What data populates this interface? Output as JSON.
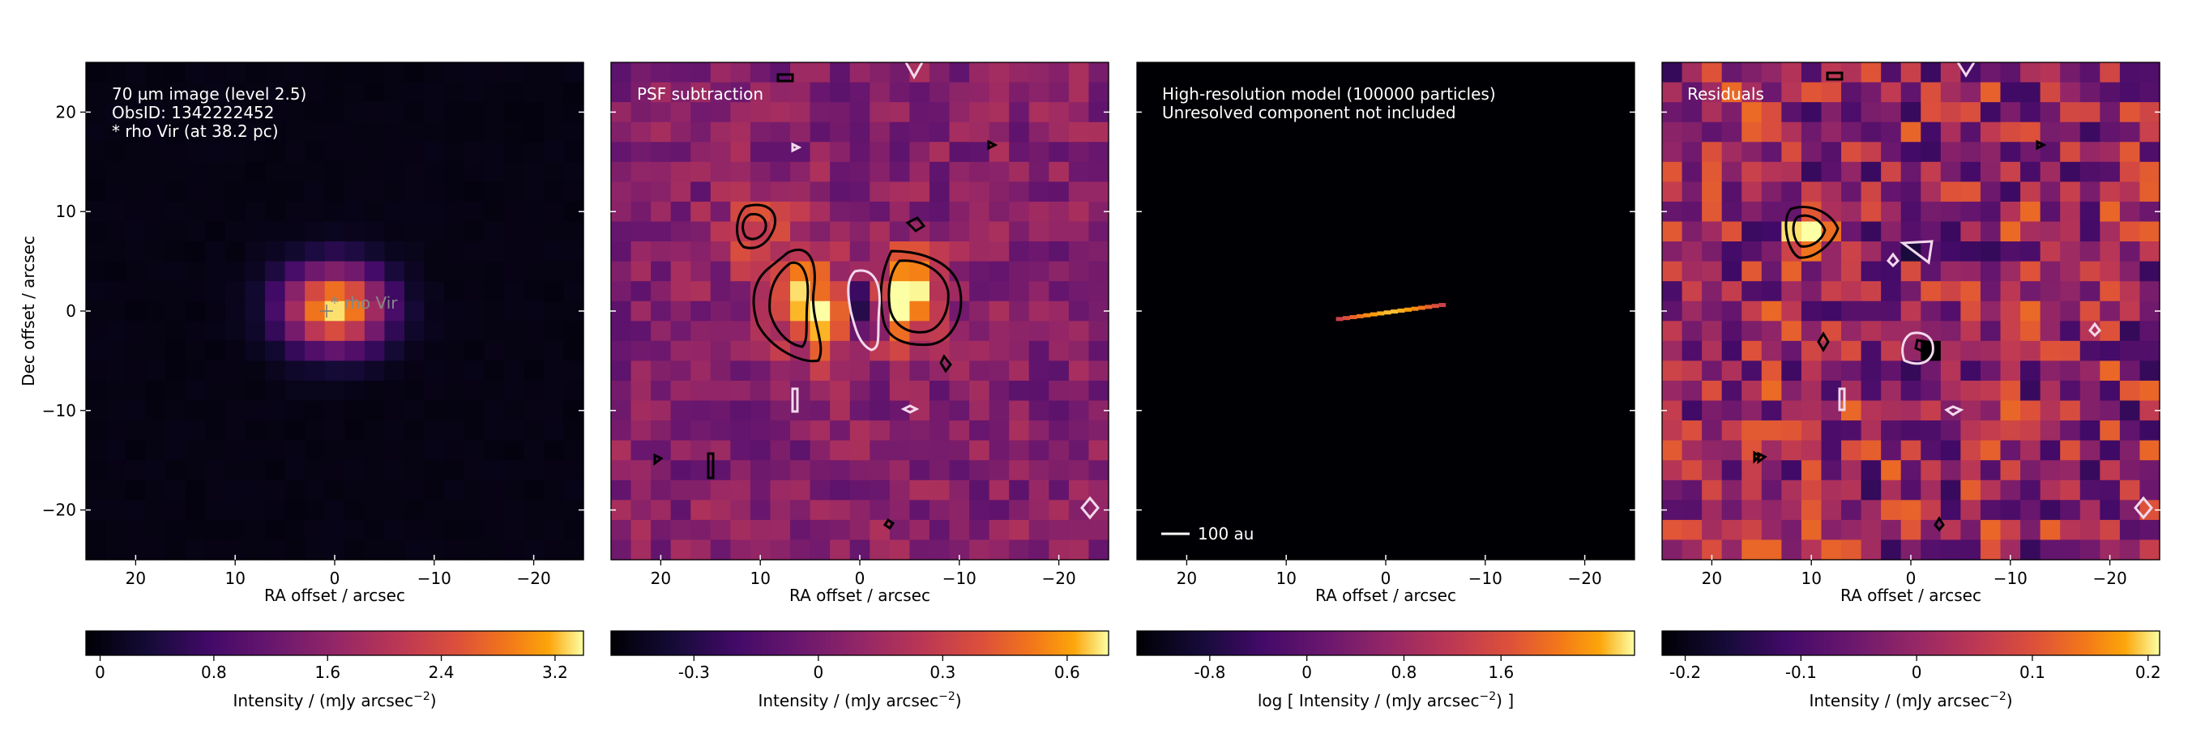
{
  "chart_data": [
    {
      "type": "heatmap",
      "panel_title_lines": [
        "70 µm image (level 2.5)",
        "ObsID: 1342222452",
        "* rho Vir (at 38.2 pc)"
      ],
      "star_label": "* rho Vir",
      "star_position": [
        0,
        0
      ],
      "xlabel": "RA offset / arcsec",
      "ylabel": "Dec offset / arcsec",
      "xlim": [
        25,
        -25
      ],
      "ylim": [
        -25,
        25
      ],
      "xticks": [
        "20",
        "10",
        "0",
        "−10",
        "−20"
      ],
      "xtick_values": [
        20,
        10,
        0,
        -10,
        -20
      ],
      "yticks": [
        "20",
        "10",
        "0",
        "−10",
        "−20"
      ],
      "ytick_values": [
        20,
        10,
        0,
        -10,
        -20
      ],
      "colormap": "inferno",
      "source": {
        "x": 0,
        "y": 0.3,
        "peak": 3.3,
        "sigma_x": 3.6,
        "sigma_y": 2.9
      },
      "colorbar": {
        "label": "Intensity / (mJy arcsec",
        "label_sup": "−2",
        "label_end": ")",
        "range": [
          -0.1,
          3.4
        ],
        "ticks": [
          "0",
          "0.8",
          "1.6",
          "2.4",
          "3.2"
        ],
        "tick_values": [
          0,
          0.8,
          1.6,
          2.4,
          3.2
        ]
      }
    },
    {
      "type": "heatmap",
      "panel_title_lines": [
        "PSF subtraction"
      ],
      "xlabel": "RA offset / arcsec",
      "xlim": [
        25,
        -25
      ],
      "ylim": [
        -25,
        25
      ],
      "xticks": [
        "20",
        "10",
        "0",
        "−10",
        "−20"
      ],
      "xtick_values": [
        20,
        10,
        0,
        -10,
        -20
      ],
      "colormap": "inferno",
      "lobes": [
        {
          "x": 4.5,
          "y": 0.5,
          "peak": 0.65
        },
        {
          "x": -5,
          "y": 1.5,
          "peak": 0.62
        },
        {
          "x": 10,
          "y": 8,
          "peak": 0.35
        }
      ],
      "negative_core": {
        "x": 0,
        "y": 0.5,
        "peak": -0.45
      },
      "colorbar": {
        "label": "Intensity / (mJy arcsec",
        "label_sup": "−2",
        "label_end": ")",
        "range": [
          -0.5,
          0.7
        ],
        "ticks": [
          "-0.3",
          "0",
          "0.3",
          "0.6"
        ],
        "tick_values": [
          -0.3,
          0,
          0.3,
          0.6
        ]
      }
    },
    {
      "type": "heatmap",
      "panel_title_lines": [
        "High-resolution model (100000 particles)",
        "Unresolved component not included"
      ],
      "scalebar_label": "100 au",
      "xlabel": "RA offset / arcsec",
      "xlim": [
        25,
        -25
      ],
      "ylim": [
        -25,
        25
      ],
      "xticks": [
        "20",
        "10",
        "0",
        "−10",
        "−20"
      ],
      "xtick_values": [
        20,
        10,
        0,
        -10,
        -20
      ],
      "colormap": "inferno",
      "disk": {
        "x_start": 5,
        "y_start": -0.8,
        "x_end": -6,
        "y_end": 0.7
      },
      "colorbar": {
        "label": "log [ Intensity / (mJy arcsec",
        "label_sup": "−2",
        "label_end": ") ]",
        "range": [
          -1.4,
          2.7
        ],
        "ticks": [
          "-0.8",
          "0",
          "0.8",
          "1.6"
        ],
        "tick_values": [
          -0.8,
          0,
          0.8,
          1.6
        ]
      }
    },
    {
      "type": "heatmap",
      "panel_title_lines": [
        "Residuals"
      ],
      "xlabel": "RA offset / arcsec",
      "xlim": [
        25,
        -25
      ],
      "ylim": [
        -25,
        25
      ],
      "xticks": [
        "20",
        "10",
        "0",
        "−10",
        "−20"
      ],
      "xtick_values": [
        20,
        10,
        0,
        -10,
        -20
      ],
      "colormap": "inferno",
      "blobs": [
        {
          "x": 10,
          "y": 8,
          "peak": 0.2
        },
        {
          "x": -2,
          "y": -3.5,
          "peak": -0.2
        },
        {
          "x": -2,
          "y": 6,
          "peak": -0.15
        }
      ],
      "colorbar": {
        "label": "Intensity / (mJy arcsec",
        "label_sup": "−2",
        "label_end": ")",
        "range": [
          -0.22,
          0.21
        ],
        "ticks": [
          "-0.2",
          "-0.1",
          "0",
          "0.1",
          "0.2"
        ],
        "tick_values": [
          -0.2,
          -0.1,
          0,
          0.1,
          0.2
        ]
      }
    }
  ]
}
